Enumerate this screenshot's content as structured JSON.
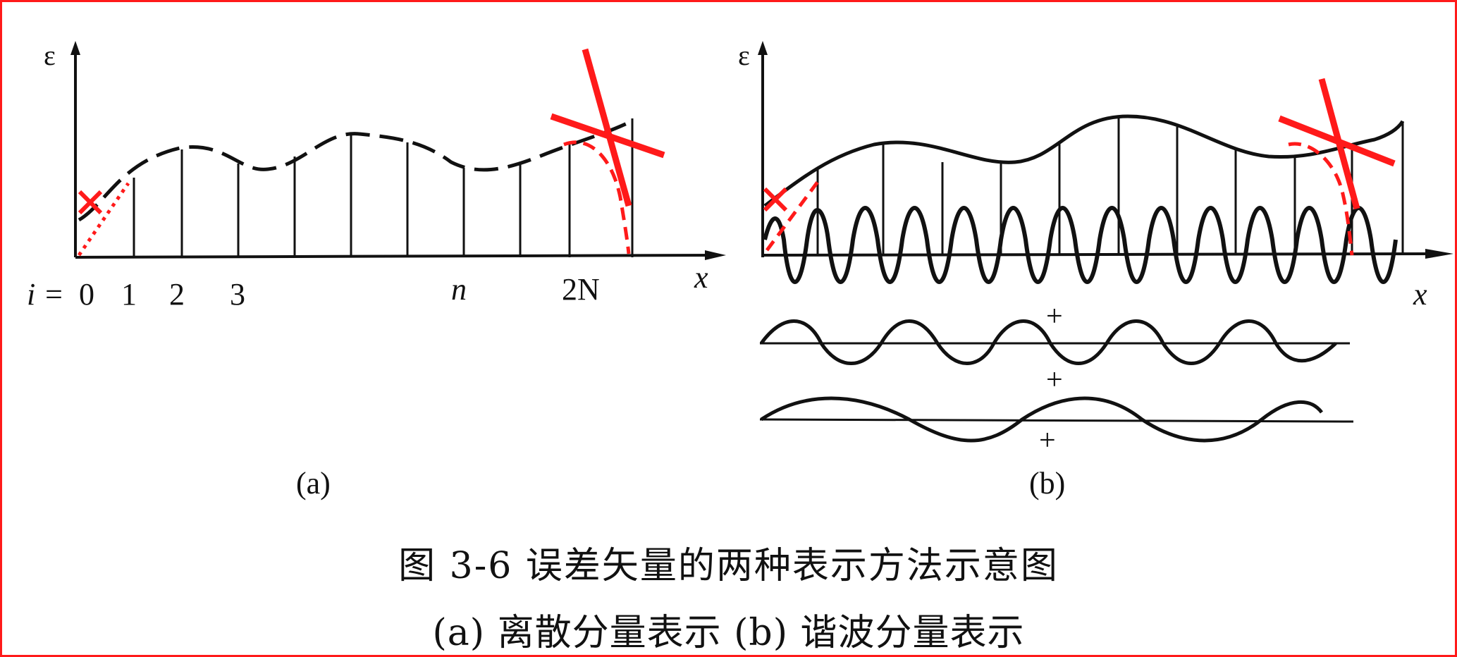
{
  "figure": {
    "panel_a": {
      "y_axis_label": "ε",
      "x_axis_label": "x",
      "index_prefix": "i =",
      "tick_labels": [
        "0",
        "1",
        "2",
        "3",
        "n",
        "2N"
      ],
      "subcaption": "(a)"
    },
    "panel_b": {
      "y_axis_label": "ε",
      "x_axis_label": "x",
      "plus_signs": [
        "+",
        "+",
        "+"
      ],
      "subcaption": "(b)"
    },
    "caption_line1": "图 3-6   误差矢量的两种表示方法示意图",
    "caption_line2": "(a) 离散分量表示   (b) 谐波分量表示",
    "annotation_color": "#ff1a1a",
    "ink_color": "#111111"
  }
}
